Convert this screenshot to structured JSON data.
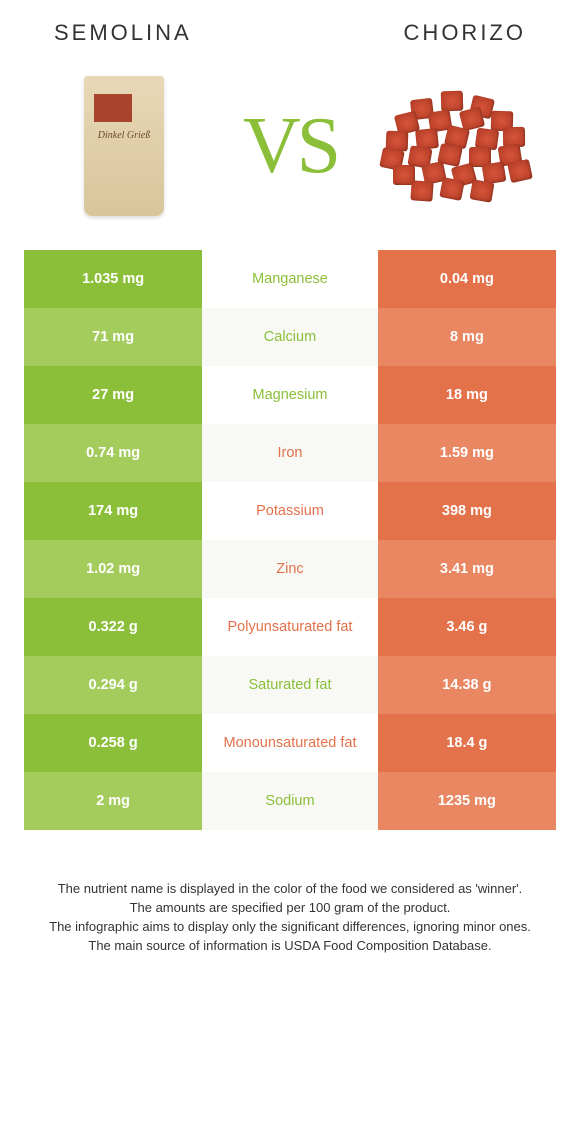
{
  "colors": {
    "left_main": "#8bbf3a",
    "left_alt": "#a3cc5c",
    "right_main": "#e3714a",
    "right_alt": "#e98763",
    "nutrient_left": "#8bbf3a",
    "nutrient_right": "#e3714a",
    "title_text": "#333333",
    "cell_text": "#ffffff"
  },
  "header": {
    "left_title": "SEMOLINA",
    "right_title": "CHORIZO",
    "vs": "VS",
    "left_bag_label": "Dinkel Grieß"
  },
  "rows": [
    {
      "left": "1.035 mg",
      "nutrient": "Manganese",
      "right": "0.04 mg",
      "winner": "left"
    },
    {
      "left": "71 mg",
      "nutrient": "Calcium",
      "right": "8 mg",
      "winner": "left"
    },
    {
      "left": "27 mg",
      "nutrient": "Magnesium",
      "right": "18 mg",
      "winner": "left"
    },
    {
      "left": "0.74 mg",
      "nutrient": "Iron",
      "right": "1.59 mg",
      "winner": "right"
    },
    {
      "left": "174 mg",
      "nutrient": "Potassium",
      "right": "398 mg",
      "winner": "right"
    },
    {
      "left": "1.02 mg",
      "nutrient": "Zinc",
      "right": "3.41 mg",
      "winner": "right"
    },
    {
      "left": "0.322 g",
      "nutrient": "Polyunsaturated fat",
      "right": "3.46 g",
      "winner": "right"
    },
    {
      "left": "0.294 g",
      "nutrient": "Saturated fat",
      "right": "14.38 g",
      "winner": "left"
    },
    {
      "left": "0.258 g",
      "nutrient": "Monounsaturated fat",
      "right": "18.4 g",
      "winner": "right"
    },
    {
      "left": "2 mg",
      "nutrient": "Sodium",
      "right": "1235 mg",
      "winner": "left"
    }
  ],
  "footnotes": [
    "The nutrient name is displayed in the color of the food we considered as 'winner'.",
    "The amounts are specified per 100 gram of the product.",
    "The infographic aims to display only the significant differences, ignoring minor ones.",
    "The main source of information is USDA Food Composition Database."
  ]
}
